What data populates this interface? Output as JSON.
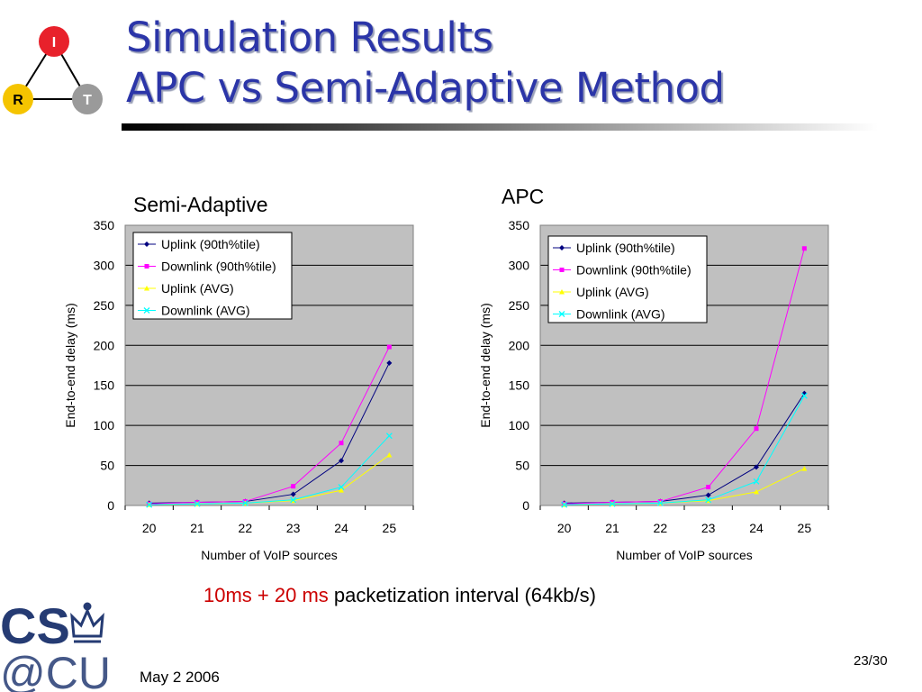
{
  "slide": {
    "title_line1": "Simulation Results",
    "title_line2": "APC vs Semi-Adaptive Method",
    "caption_red": "10ms + 20 ms",
    "caption_rest": " packetization interval (64kb/s)",
    "date": "May 2 2006",
    "page": "23/30"
  },
  "logos": {
    "triangle": {
      "top": "I",
      "left": "R",
      "right": "T"
    },
    "cu": {
      "line1": "CS",
      "line2": "@CU"
    }
  },
  "colors": {
    "title": "#2b35a8",
    "plot_bg": "#c0c0c0",
    "node_i": "#e8212b",
    "node_r": "#f5c400",
    "node_t": "#9a9a9a",
    "cu_blue": "#253b73"
  },
  "chart_data": [
    {
      "type": "line",
      "title": "Semi-Adaptive",
      "xlabel": "Number of VoIP sources",
      "ylabel": "End-to-end delay (ms)",
      "categories": [
        "20",
        "21",
        "22",
        "23",
        "24",
        "25"
      ],
      "ylim": [
        0,
        350
      ],
      "yticks": [
        "0",
        "50",
        "100",
        "150",
        "200",
        "250",
        "300",
        "350"
      ],
      "grid": true,
      "legend_position": "top-left",
      "series": [
        {
          "name": "Uplink (90th%tile)",
          "color": "#000080",
          "marker": "diamond",
          "values": [
            3,
            4,
            5,
            14,
            56,
            178
          ]
        },
        {
          "name": "Downlink (90th%tile)",
          "color": "#ff00ff",
          "marker": "square",
          "values": [
            2,
            4,
            5,
            24,
            78,
            198
          ]
        },
        {
          "name": "Uplink (AVG)",
          "color": "#ffff00",
          "marker": "triangle",
          "values": [
            1,
            2,
            3,
            6,
            19,
            63
          ]
        },
        {
          "name": "Downlink (AVG)",
          "color": "#00ffff",
          "marker": "x",
          "values": [
            1,
            2,
            3,
            7,
            23,
            87
          ]
        }
      ]
    },
    {
      "type": "line",
      "title": "APC",
      "xlabel": "Number of VoIP sources",
      "ylabel": "End-to-end delay (ms)",
      "categories": [
        "20",
        "21",
        "22",
        "23",
        "24",
        "25"
      ],
      "ylim": [
        0,
        350
      ],
      "yticks": [
        "0",
        "50",
        "100",
        "150",
        "200",
        "250",
        "300",
        "350"
      ],
      "grid": true,
      "legend_position": "top-left",
      "series": [
        {
          "name": "Uplink (90th%tile)",
          "color": "#000080",
          "marker": "diamond",
          "values": [
            3,
            4,
            5,
            13,
            48,
            140
          ]
        },
        {
          "name": "Downlink (90th%tile)",
          "color": "#ff00ff",
          "marker": "square",
          "values": [
            2,
            4,
            5,
            23,
            96,
            321
          ]
        },
        {
          "name": "Uplink (AVG)",
          "color": "#ffff00",
          "marker": "triangle",
          "values": [
            1,
            2,
            3,
            6,
            17,
            46
          ]
        },
        {
          "name": "Downlink (AVG)",
          "color": "#00ffff",
          "marker": "x",
          "values": [
            1,
            2,
            3,
            7,
            30,
            137
          ]
        }
      ]
    }
  ]
}
